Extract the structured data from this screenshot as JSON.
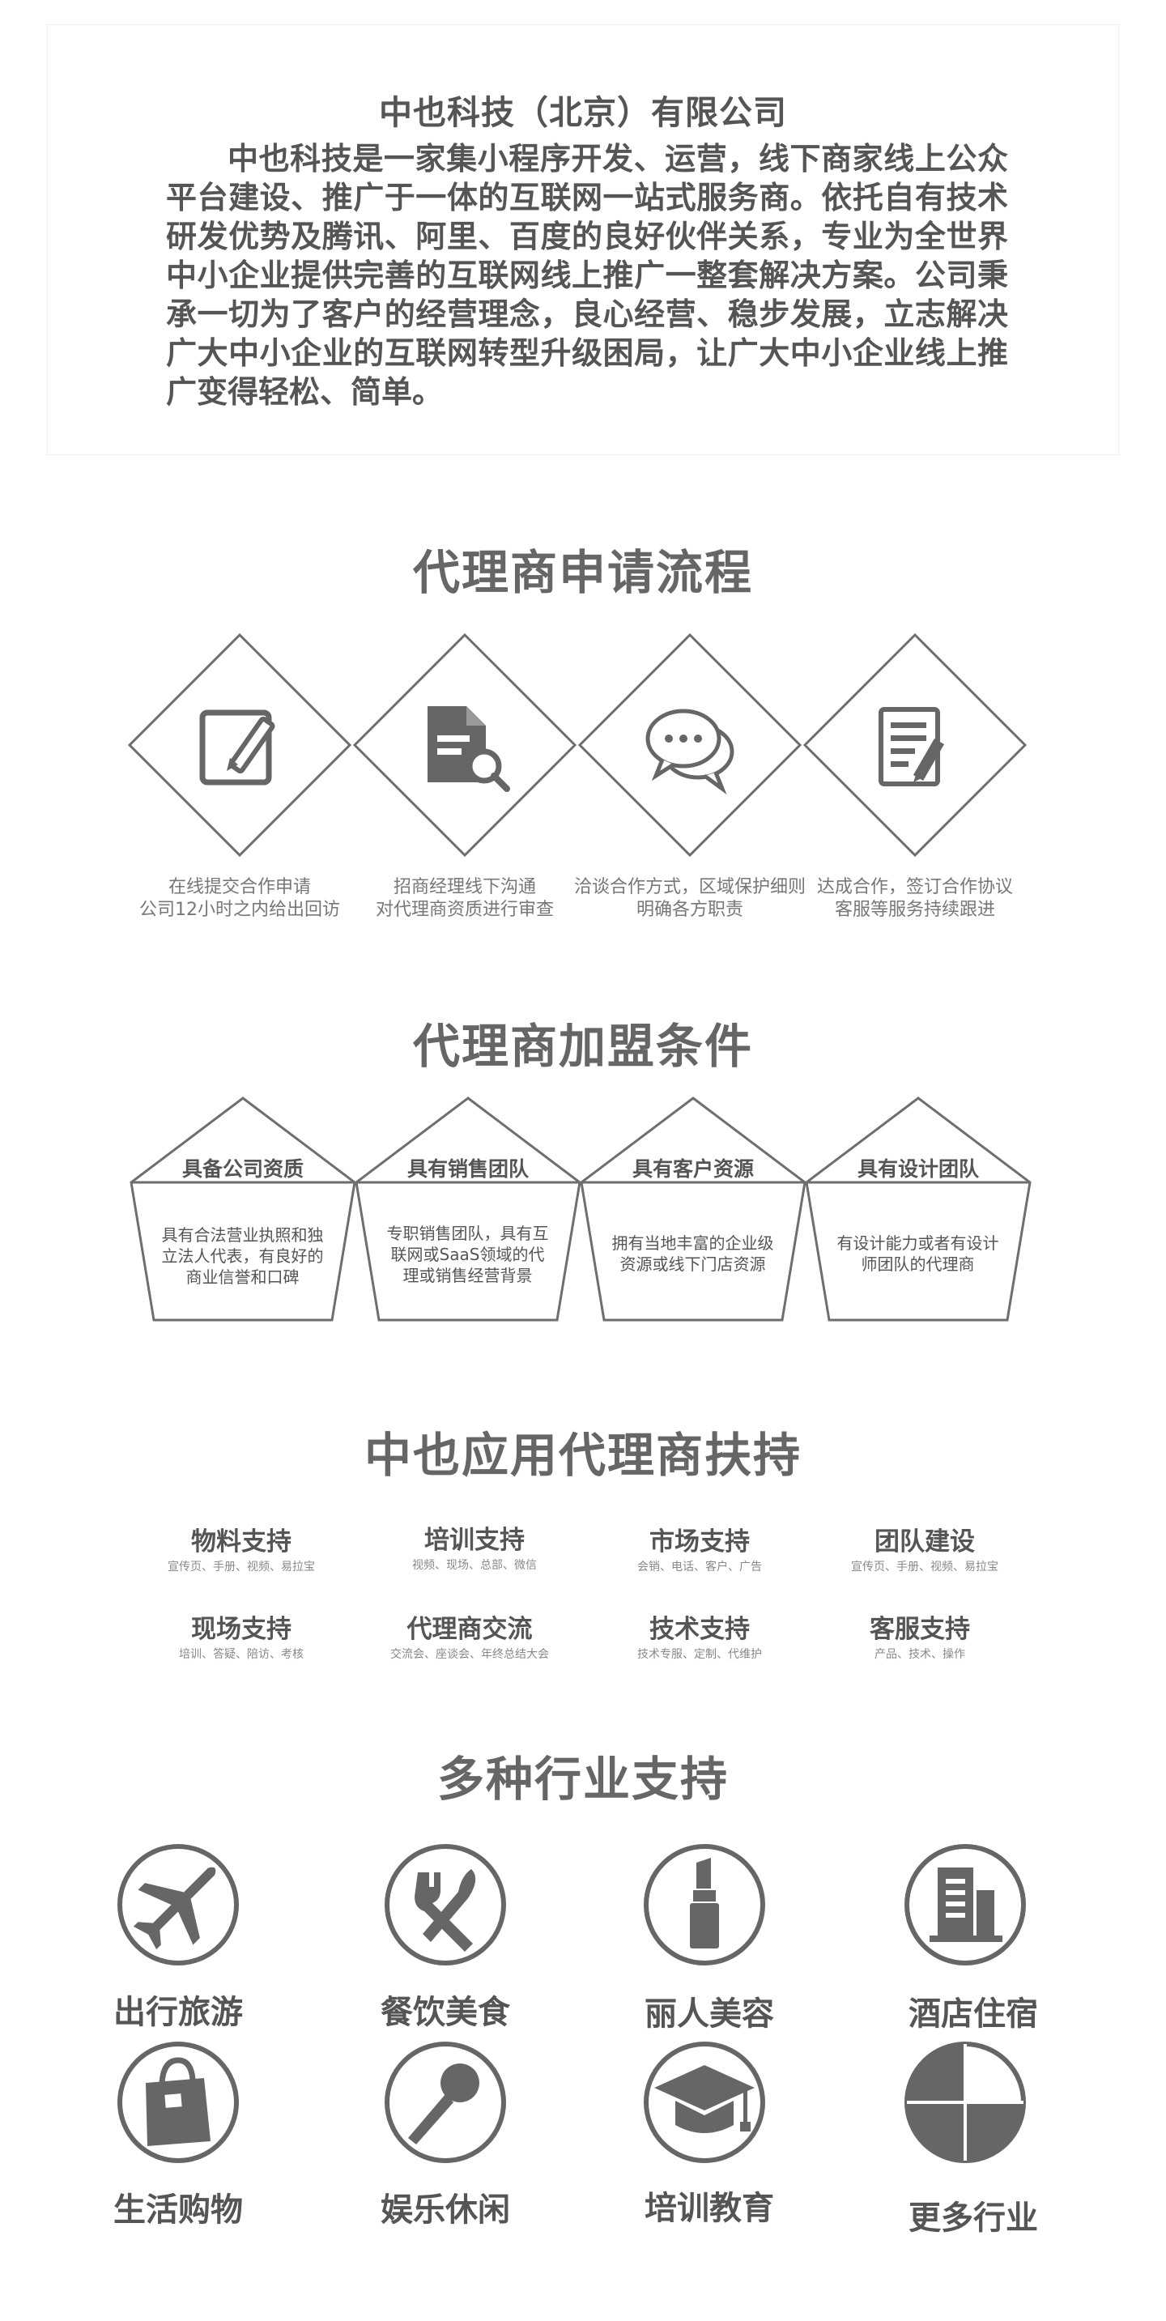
{
  "intro": {
    "company_name": "中也科技（北京）有限公司",
    "description": "中也科技是一家集小程序开发、运营，线下商家线上公众平台建设、推广于一体的互联网一站式服务商。依托自有技术研发优势及腾讯、阿里、百度的良好伙伴关系，专业为全世界中小企业提供完善的互联网线上推广一整套解决方案。公司秉承一切为了客户的经营理念，良心经营、稳步发展，立志解决广大中小企业的互联网转型升级困局，让广大中小企业线上推广变得轻松、简单。"
  },
  "process": {
    "title": "代理商申请流程",
    "steps": [
      {
        "icon": "edit-icon",
        "line1": "在线提交合作申请",
        "line2": "公司12小时之内给出回访"
      },
      {
        "icon": "document-search-icon",
        "line1": "招商经理线下沟通",
        "line2": "对代理商资质进行审查"
      },
      {
        "icon": "chat-icon",
        "line1": "洽谈合作方式，区域保护细则",
        "line2": "明确各方职责"
      },
      {
        "icon": "contract-sign-icon",
        "line1": "达成合作，签订合作协议",
        "line2": "客服等服务持续跟进"
      }
    ]
  },
  "conditions": {
    "title": "代理商加盟条件",
    "items": [
      {
        "title": "具备公司资质",
        "desc": "具有合法营业执照和独立法人代表，有良好的商业信誉和口碑"
      },
      {
        "title": "具有销售团队",
        "desc": "专职销售团队，具有互联网或SaaS领域的代理或销售经营背景"
      },
      {
        "title": "具有客户资源",
        "desc": "拥有当地丰富的企业级资源或线下门店资源"
      },
      {
        "title": "具有设计团队",
        "desc": "有设计能力或者有设计师团队的代理商"
      }
    ]
  },
  "support": {
    "title": "中也应用代理商扶持",
    "items": [
      {
        "title": "物料支持",
        "sub": "宣传页、手册、视频、易拉宝"
      },
      {
        "title": "培训支持",
        "sub": "视频、现场、总部、微信"
      },
      {
        "title": "市场支持",
        "sub": "会销、电话、客户、广告"
      },
      {
        "title": "团队建设",
        "sub": "宣传页、手册、视频、易拉宝"
      },
      {
        "title": "现场支持",
        "sub": "培训、答疑、陪访、考核"
      },
      {
        "title": "代理商交流",
        "sub": "交流会、座谈会、年终总结大会"
      },
      {
        "title": "技术支持",
        "sub": "技术专服、定制、代维护"
      },
      {
        "title": "客服支持",
        "sub": "产品、技术、操作"
      }
    ]
  },
  "industries": {
    "title": "多种行业支持",
    "items": [
      {
        "label": "出行旅游",
        "icon": "airplane-icon"
      },
      {
        "label": "餐饮美食",
        "icon": "fork-knife-icon"
      },
      {
        "label": "丽人美容",
        "icon": "lipstick-icon"
      },
      {
        "label": "酒店住宿",
        "icon": "building-icon"
      },
      {
        "label": "生活购物",
        "icon": "shopping-bag-icon"
      },
      {
        "label": "娱乐休闲",
        "icon": "microphone-icon"
      },
      {
        "label": "培训教育",
        "icon": "graduation-cap-icon"
      },
      {
        "label": "更多行业",
        "icon": "pie-chart-icon"
      }
    ]
  },
  "colors": {
    "text": "#555555",
    "icon_gray": "#666666",
    "outline": "#6e6e6e"
  }
}
